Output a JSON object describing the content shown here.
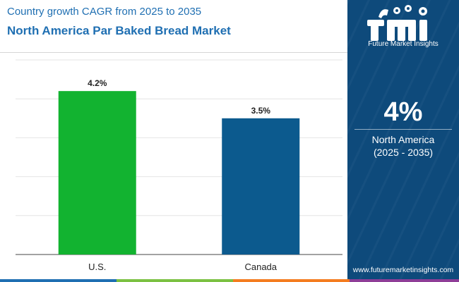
{
  "header": {
    "subtitle": "Country growth CAGR from 2025 to 2035",
    "title": "North America Par Baked Bread Market"
  },
  "chart_data": {
    "type": "bar",
    "categories": [
      "U.S.",
      "Canada"
    ],
    "values": [
      4.2,
      3.5
    ],
    "value_labels": [
      "4.2%",
      "3.5%"
    ],
    "bar_colors": [
      "#12b330",
      "#0c5a8e"
    ],
    "ylim": [
      0,
      5
    ],
    "gridlines": 5,
    "grid": true
  },
  "sidebar": {
    "logo_text": "Future Market Insights",
    "value": "4%",
    "region": "North America",
    "period": "(2025 - 2035)",
    "website": "www.futuremarketinsights.com",
    "background": "#0e4a7b"
  },
  "footer_colors": [
    "#1f6fb2",
    "#7bc142",
    "#f47c20",
    "#8e3d97"
  ]
}
